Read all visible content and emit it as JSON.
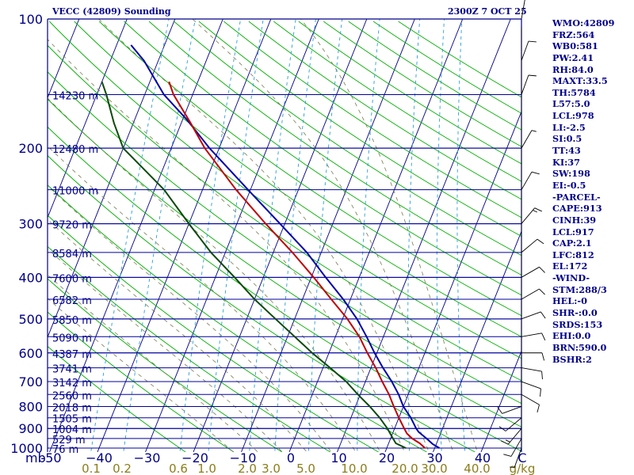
{
  "header": {
    "station": "VECC (42809) Sounding",
    "valid_time": "2300Z  7 OCT 25"
  },
  "chart_data": {
    "type": "skew-t log-p",
    "pressure_axis": {
      "unit_label": "mb",
      "ticks": [
        100,
        200,
        300,
        400,
        500,
        600,
        700,
        800,
        900,
        1000
      ],
      "range": [
        100,
        1000
      ],
      "scale": "log"
    },
    "temperature_axis": {
      "ticks": [
        -50,
        -40,
        -30,
        -20,
        -10,
        0,
        10,
        20,
        30,
        40
      ],
      "tick_labels": [
        "-50",
        "−40",
        "−30",
        "−20",
        "−10",
        "0",
        "10",
        "20",
        "30",
        "40"
      ],
      "unit_label": "C"
    },
    "mixing_ratio_axis": {
      "ticks": [
        0.1,
        0.2,
        0.6,
        1.0,
        2.0,
        3.0,
        5.0,
        10.0,
        20.0,
        30.0,
        40.0
      ],
      "tick_labels": [
        "0.1",
        "0.2",
        "0.6",
        "1.0",
        "2.0",
        "3.0",
        "5.0",
        "10.0",
        "20.0",
        "30.0",
        "40.0"
      ],
      "unit_label": "g/kg"
    },
    "height_labels": [
      {
        "p": 150,
        "label": "14230 m"
      },
      {
        "p": 200,
        "label": "12480 m"
      },
      {
        "p": 250,
        "label": "11000 m"
      },
      {
        "p": 300,
        "label": "9720 m"
      },
      {
        "p": 350,
        "label": "8584 m"
      },
      {
        "p": 400,
        "label": "7600 m"
      },
      {
        "p": 450,
        "label": "6582 m"
      },
      {
        "p": 500,
        "label": "5850 m"
      },
      {
        "p": 550,
        "label": "5090 m"
      },
      {
        "p": 600,
        "label": "4387 m"
      },
      {
        "p": 650,
        "label": "3741 m"
      },
      {
        "p": 700,
        "label": "3142 m"
      },
      {
        "p": 750,
        "label": "2560 m"
      },
      {
        "p": 800,
        "label": "2018 m"
      },
      {
        "p": 850,
        "label": "1505 m"
      },
      {
        "p": 900,
        "label": "1004 m"
      },
      {
        "p": 950,
        "label": "529 m"
      },
      {
        "p": 1000,
        "label": "76 m"
      }
    ],
    "series": [
      {
        "id": "temperature",
        "points": [
          [
            1000,
            28
          ],
          [
            975,
            26.5
          ],
          [
            950,
            24.5
          ],
          [
            925,
            23
          ],
          [
            900,
            22
          ],
          [
            850,
            20
          ],
          [
            800,
            18
          ],
          [
            750,
            16
          ],
          [
            700,
            13.5
          ],
          [
            650,
            11
          ],
          [
            600,
            8
          ],
          [
            550,
            5
          ],
          [
            500,
            1
          ],
          [
            450,
            -4
          ],
          [
            400,
            -9.5
          ],
          [
            350,
            -16
          ],
          [
            300,
            -24
          ],
          [
            250,
            -33
          ],
          [
            200,
            -43
          ],
          [
            175,
            -48
          ],
          [
            150,
            -54
          ],
          [
            140,
            -56
          ]
        ]
      },
      {
        "id": "dewpoint",
        "points": [
          [
            1000,
            24
          ],
          [
            975,
            21.5
          ],
          [
            950,
            20.5
          ],
          [
            900,
            18.5
          ],
          [
            850,
            16
          ],
          [
            800,
            13
          ],
          [
            750,
            9.5
          ],
          [
            700,
            6
          ],
          [
            650,
            1.5
          ],
          [
            600,
            -3.5
          ],
          [
            550,
            -8.5
          ],
          [
            500,
            -14
          ],
          [
            450,
            -20
          ],
          [
            400,
            -26
          ],
          [
            350,
            -33
          ],
          [
            300,
            -40
          ],
          [
            250,
            -48
          ],
          [
            200,
            -60
          ],
          [
            175,
            -64
          ],
          [
            150,
            -68
          ],
          [
            140,
            -70
          ]
        ]
      },
      {
        "id": "parcel",
        "points": [
          [
            1000,
            31
          ],
          [
            978,
            29.2
          ],
          [
            950,
            27.5
          ],
          [
            917,
            25.3
          ],
          [
            900,
            24.5
          ],
          [
            850,
            22.5
          ],
          [
            800,
            20
          ],
          [
            750,
            18
          ],
          [
            700,
            15.5
          ],
          [
            650,
            12.5
          ],
          [
            600,
            9.5
          ],
          [
            550,
            6.5
          ],
          [
            500,
            3
          ],
          [
            450,
            -1.5
          ],
          [
            400,
            -7
          ],
          [
            350,
            -13
          ],
          [
            300,
            -21
          ],
          [
            250,
            -30.5
          ],
          [
            200,
            -42
          ],
          [
            172,
            -49
          ],
          [
            150,
            -56
          ],
          [
            125,
            -63
          ],
          [
            115,
            -67
          ]
        ]
      }
    ],
    "wind_barbs": [
      {
        "p": 1000,
        "dir": 200,
        "spd": 5
      },
      {
        "p": 950,
        "dir": 210,
        "spd": 10
      },
      {
        "p": 900,
        "dir": 220,
        "spd": 15
      },
      {
        "p": 850,
        "dir": 230,
        "spd": 10
      },
      {
        "p": 800,
        "dir": 250,
        "spd": 10
      },
      {
        "p": 750,
        "dir": 120,
        "spd": 10
      },
      {
        "p": 700,
        "dir": 110,
        "spd": 10
      },
      {
        "p": 650,
        "dir": 100,
        "spd": 10
      },
      {
        "p": 600,
        "dir": 90,
        "spd": 10
      },
      {
        "p": 550,
        "dir": 80,
        "spd": 10
      },
      {
        "p": 500,
        "dir": 70,
        "spd": 10
      },
      {
        "p": 450,
        "dir": 60,
        "spd": 10
      },
      {
        "p": 400,
        "dir": 60,
        "spd": 10
      },
      {
        "p": 350,
        "dir": 50,
        "spd": 10
      },
      {
        "p": 300,
        "dir": 40,
        "spd": 15
      },
      {
        "p": 250,
        "dir": 30,
        "spd": 10
      },
      {
        "p": 200,
        "dir": 30,
        "spd": 5
      },
      {
        "p": 150,
        "dir": 20,
        "spd": 10
      },
      {
        "p": 125,
        "dir": 20,
        "spd": 10
      },
      {
        "p": 100,
        "dir": 10,
        "spd": 5
      }
    ]
  },
  "indices": [
    "WMO:42809",
    "FRZ:564",
    "WB0:581",
    "PW:2.41",
    "RH:84.0",
    "MAXT:33.5",
    "TH:5784",
    "L57:5.0",
    "LCL:978",
    "LI:-2.5",
    "SI:0.5",
    "TT:43",
    "KI:37",
    "SW:198",
    "EI:-0.5",
    "-PARCEL-",
    "CAPE:913",
    "CINH:39",
    "LCL:917",
    "CAP:2.1",
    "LFC:812",
    "EL:172",
    "-WIND-",
    "STM:288/3",
    "HEL:-0",
    "SHR-:0.0",
    "SRDS:153",
    "EHI:0.0",
    "BRN:590.0",
    "BSHR:2"
  ],
  "colors": {
    "frame": "#00008b",
    "isobar": "#0000a0",
    "isotherm": "#00008b",
    "dry_adiabat": "#00b000",
    "moist_adiabat": "#7a7a50",
    "mixing_ratio": "#2a9fd6",
    "temperature": "#c00000",
    "dewpoint": "#0a4a0a",
    "parcel": "#0000a8",
    "text": "#00008b",
    "mixing_label": "#8b7d1a"
  }
}
